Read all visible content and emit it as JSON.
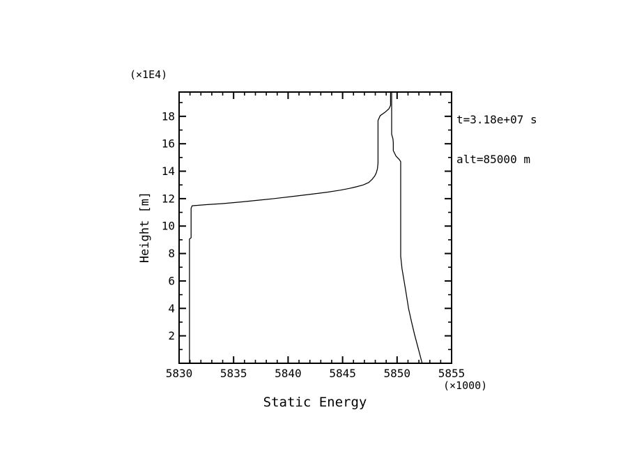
{
  "figure": {
    "background": "#ffffff",
    "ink": "#000000"
  },
  "annotations": {
    "time": "t=3.18e+07 s",
    "altitude": "alt=85000 m"
  },
  "chart_data": {
    "type": "line",
    "title": "",
    "xlabel": "Static Energy",
    "ylabel": "Height [m]",
    "x_multiplier_label": "(×1000)",
    "y_multiplier_label": "(×1E4)",
    "xlim": [
      5830,
      5855
    ],
    "ylim": [
      0,
      19.77
    ],
    "x_major_ticks": [
      5830,
      5835,
      5840,
      5845,
      5850,
      5855
    ],
    "x_tick_labels": [
      "5830",
      "5835",
      "5840",
      "5845",
      "5850",
      "5855"
    ],
    "x_minor_step": 1,
    "y_major_ticks": [
      2,
      4,
      6,
      8,
      10,
      12,
      14,
      16,
      18
    ],
    "y_tick_labels": [
      "2",
      "4",
      "6",
      "8",
      "10",
      "12",
      "14",
      "16",
      "18"
    ],
    "y_minor_step": 1,
    "grid": false,
    "legend": null,
    "series": [
      {
        "name": "static-energy-profile",
        "points": [
          [
            5830.95,
            0.0
          ],
          [
            5830.95,
            9.05
          ],
          [
            5831.1,
            9.15
          ],
          [
            5831.1,
            11.3
          ],
          [
            5831.2,
            11.48
          ],
          [
            5832.5,
            11.56
          ],
          [
            5834.0,
            11.64
          ],
          [
            5835.7,
            11.76
          ],
          [
            5837.2,
            11.88
          ],
          [
            5838.8,
            12.01
          ],
          [
            5840.4,
            12.16
          ],
          [
            5842.0,
            12.31
          ],
          [
            5843.6,
            12.47
          ],
          [
            5844.8,
            12.62
          ],
          [
            5845.6,
            12.74
          ],
          [
            5846.3,
            12.87
          ],
          [
            5846.9,
            13.0
          ],
          [
            5847.4,
            13.18
          ],
          [
            5847.7,
            13.4
          ],
          [
            5847.95,
            13.65
          ],
          [
            5848.1,
            13.9
          ],
          [
            5848.2,
            14.2
          ],
          [
            5848.25,
            14.6
          ],
          [
            5848.25,
            17.7
          ],
          [
            5848.45,
            18.05
          ],
          [
            5848.9,
            18.3
          ],
          [
            5849.25,
            18.55
          ],
          [
            5849.4,
            18.8
          ],
          [
            5849.4,
            19.77
          ],
          [
            5849.5,
            19.77
          ],
          [
            5849.5,
            16.7
          ],
          [
            5849.62,
            16.35
          ],
          [
            5849.65,
            16.1
          ],
          [
            5849.65,
            15.5
          ],
          [
            5849.9,
            15.1
          ],
          [
            5850.2,
            14.85
          ],
          [
            5850.33,
            14.7
          ],
          [
            5850.33,
            7.8
          ],
          [
            5850.45,
            6.9
          ],
          [
            5850.6,
            6.2
          ],
          [
            5850.82,
            5.15
          ],
          [
            5851.05,
            4.0
          ],
          [
            5851.3,
            3.1
          ],
          [
            5851.6,
            2.1
          ],
          [
            5851.95,
            1.05
          ],
          [
            5852.3,
            0.0
          ]
        ]
      }
    ]
  }
}
